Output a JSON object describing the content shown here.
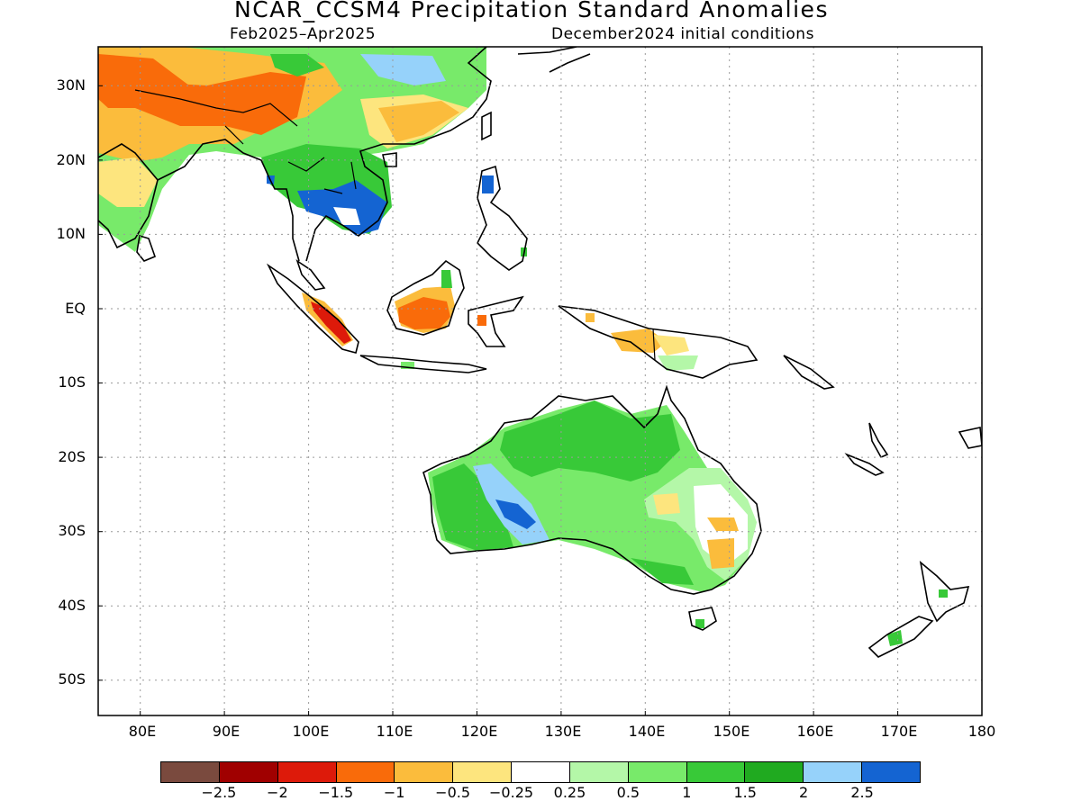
{
  "header": {
    "title": "NCAR_CCSM4 Precipitation Standard Anomalies",
    "period": "Feb2025–Apr2025",
    "init": "December2024 initial conditions"
  },
  "map": {
    "lon_range": [
      75,
      180
    ],
    "lat_range": [
      -55,
      35
    ],
    "lat_labels": [
      "30N",
      "20N",
      "10N",
      "EQ",
      "10S",
      "20S",
      "30S",
      "40S",
      "50S"
    ],
    "lon_labels": [
      "80E",
      "90E",
      "100E",
      "110E",
      "120E",
      "130E",
      "140E",
      "150E",
      "160E",
      "170E",
      "180"
    ],
    "grid": "dotted"
  },
  "colorbar": {
    "colors": [
      "#7a4a3e",
      "#a00000",
      "#dd1a0a",
      "#f96b0a",
      "#fbbc3c",
      "#fde57e",
      "#ffffff",
      "#b4f7a8",
      "#78ea6a",
      "#38c938",
      "#20aa20",
      "#96d2fa",
      "#1464d2"
    ],
    "labels": [
      "−2.5",
      "−2",
      "−1.5",
      "−1",
      "−0.5",
      "−0.25",
      "0.25",
      "0.5",
      "1",
      "1.5",
      "2",
      "2.5"
    ]
  }
}
